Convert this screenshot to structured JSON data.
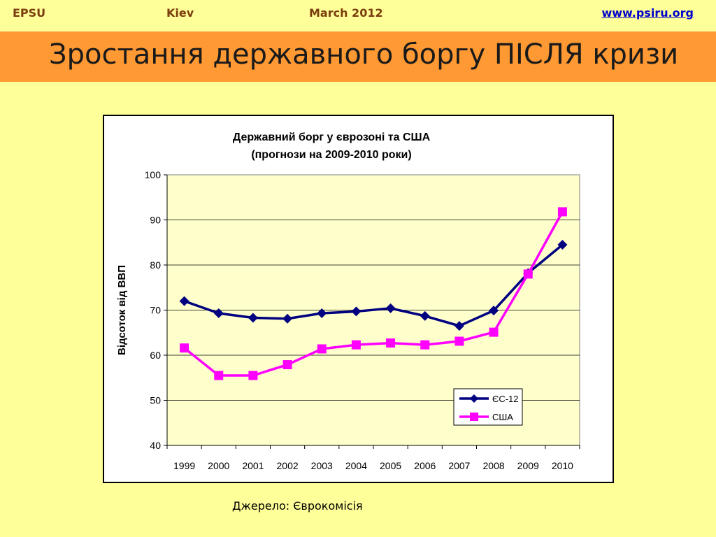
{
  "header": {
    "org": "EPSU",
    "city": "Kiev",
    "date": "March 2012",
    "website": "www.psiru.org"
  },
  "slide": {
    "title": "Зростання державного боргу ПІСЛЯ кризи",
    "source": "Джерело: Єврокомісія"
  },
  "colors": {
    "background": "#ffff99",
    "banner": "#ff9933",
    "plot_area": "#ffffcc",
    "eu": "#000080",
    "us": "#ff00ff"
  },
  "chart_data": {
    "type": "line",
    "title": "Державний борг у єврозоні та США",
    "subtitle": "(прогнози на 2009-2010 роки)",
    "xlabel": "",
    "ylabel": "Відсоток від ВВП",
    "x": [
      "1999",
      "2000",
      "2001",
      "2002",
      "2003",
      "2004",
      "2005",
      "2006",
      "2007",
      "2008",
      "2009",
      "2010"
    ],
    "ylim": [
      40,
      100
    ],
    "yticks": [
      40,
      50,
      60,
      70,
      80,
      90,
      100
    ],
    "grid": true,
    "legend": "bottom-right",
    "series": [
      {
        "name": "ЄС-12",
        "marker": "diamond",
        "values": [
          72.0,
          69.3,
          68.3,
          68.1,
          69.3,
          69.7,
          70.4,
          68.7,
          66.5,
          69.9,
          78.2,
          84.5
        ]
      },
      {
        "name": "США",
        "marker": "square",
        "values": [
          61.6,
          55.5,
          55.5,
          57.9,
          61.4,
          62.3,
          62.7,
          62.3,
          63.1,
          65.1,
          78.0,
          91.8
        ]
      }
    ]
  }
}
